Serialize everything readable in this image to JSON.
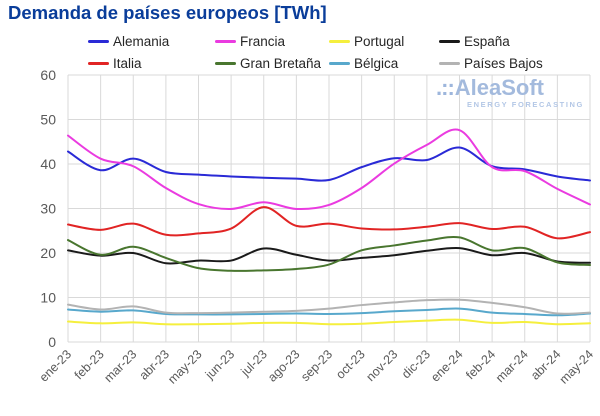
{
  "title": "Demanda de países europeos [TWh]",
  "logo": {
    "prefix": ".::",
    "brand": "AleaSoft",
    "tagline": "ENERGY FORECASTING"
  },
  "colors": {
    "title": "#0a3d9a",
    "grid": "#d9d9d9",
    "tick": "#595959",
    "legend_text": "#262626",
    "logo": "#a3badd"
  },
  "chart_data": {
    "type": "line",
    "title": "Demanda de países europeos [TWh]",
    "xlabel": "",
    "ylabel": "",
    "ylim": [
      0,
      60
    ],
    "yticks": [
      0,
      10,
      20,
      30,
      40,
      50,
      60
    ],
    "grid": true,
    "legend_position": "top",
    "x": [
      "ene-23",
      "feb-23",
      "mar-23",
      "abr-23",
      "may-23",
      "jun-23",
      "jul-23",
      "ago-23",
      "sep-23",
      "oct-23",
      "nov-23",
      "dic-23",
      "ene-24",
      "feb-24",
      "mar-24",
      "abr-24",
      "may-24"
    ],
    "series": [
      {
        "name": "Alemania",
        "color": "#2a2ad6",
        "values": [
          42.8,
          38.6,
          41.2,
          38.2,
          37.6,
          37.2,
          36.9,
          36.7,
          36.4,
          39.3,
          41.3,
          40.9,
          43.7,
          39.5,
          38.8,
          37.2,
          36.3
        ]
      },
      {
        "name": "Francia",
        "color": "#ea3be0",
        "values": [
          46.4,
          41.2,
          39.5,
          34.6,
          31.0,
          29.9,
          31.4,
          29.9,
          30.8,
          34.6,
          40.1,
          44.3,
          47.6,
          39.3,
          38.4,
          34.4,
          30.9
        ]
      },
      {
        "name": "Portugal",
        "color": "#f5ef3d",
        "values": [
          4.6,
          4.2,
          4.4,
          4.0,
          4.0,
          4.1,
          4.3,
          4.3,
          4.0,
          4.1,
          4.5,
          4.8,
          5.0,
          4.3,
          4.5,
          4.0,
          4.2
        ]
      },
      {
        "name": "España",
        "color": "#1a1a1a",
        "values": [
          20.6,
          19.4,
          20.0,
          17.7,
          18.3,
          18.3,
          21.0,
          19.6,
          18.3,
          18.9,
          19.5,
          20.5,
          21.1,
          19.5,
          20.0,
          18.1,
          17.8
        ]
      },
      {
        "name": "Italia",
        "color": "#e12424",
        "values": [
          26.4,
          25.2,
          26.6,
          24.1,
          24.4,
          25.5,
          30.3,
          26.1,
          26.6,
          25.5,
          25.3,
          25.9,
          26.7,
          25.4,
          25.9,
          23.3,
          24.7
        ]
      },
      {
        "name": "Gran Bretaña",
        "color": "#49762f",
        "values": [
          22.9,
          19.6,
          21.4,
          18.9,
          16.6,
          16.0,
          16.1,
          16.4,
          17.4,
          20.6,
          21.7,
          22.8,
          23.5,
          20.6,
          21.1,
          17.9,
          17.3
        ]
      },
      {
        "name": "Bélgica",
        "color": "#58a8cc",
        "values": [
          7.3,
          6.8,
          7.1,
          6.3,
          6.2,
          6.2,
          6.3,
          6.4,
          6.3,
          6.5,
          6.9,
          7.2,
          7.5,
          6.6,
          6.3,
          6.0,
          6.4
        ]
      },
      {
        "name": "Países Bajos",
        "color": "#b3b3b3",
        "values": [
          8.4,
          7.3,
          8.0,
          6.6,
          6.5,
          6.6,
          6.8,
          7.0,
          7.5,
          8.3,
          8.9,
          9.4,
          9.5,
          8.8,
          7.8,
          6.4,
          6.6
        ]
      }
    ]
  }
}
